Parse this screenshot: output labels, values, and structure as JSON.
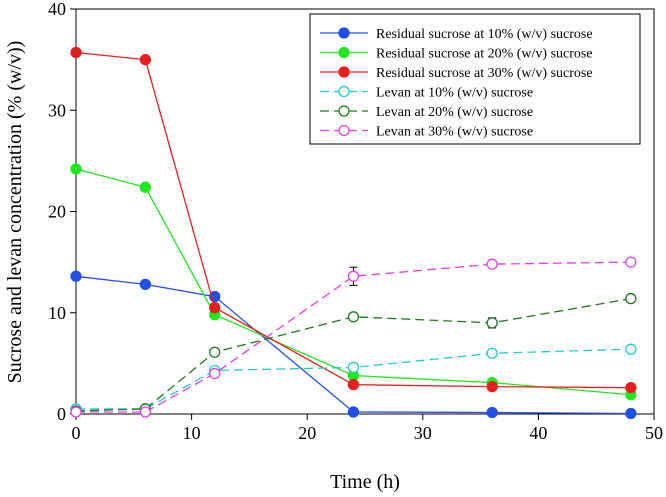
{
  "chart_data": {
    "type": "line",
    "title": "",
    "xlabel": "Time (h)",
    "ylabel": "Sucrose and levan concentration (% (w/v))",
    "xlim": [
      0,
      50
    ],
    "ylim": [
      0,
      40
    ],
    "xticks": [
      0,
      10,
      20,
      30,
      40,
      50
    ],
    "yticks": [
      0,
      10,
      20,
      30,
      40
    ],
    "grid": false,
    "legend_position": "top-right",
    "x": [
      0,
      6,
      12,
      24,
      36,
      48
    ],
    "series": [
      {
        "name": "Residual sucrose at 10% (w/v) sucrose",
        "color": "#1f4fe8",
        "style": "solid",
        "marker": "filled-circle",
        "values": [
          13.6,
          12.8,
          11.6,
          0.2,
          0.15,
          0.05
        ],
        "errors": [
          0.2,
          0.2,
          0.3,
          0.1,
          0.1,
          0.05
        ]
      },
      {
        "name": "Residual sucrose at 20% (w/v) sucrose",
        "color": "#1ee81e",
        "style": "solid",
        "marker": "filled-circle",
        "values": [
          24.2,
          22.4,
          9.8,
          3.8,
          3.1,
          1.9
        ],
        "errors": [
          0.2,
          0.2,
          0.3,
          0.2,
          0.2,
          0.2
        ]
      },
      {
        "name": "Residual sucrose at 30% (w/v) sucrose",
        "color": "#e81e1e",
        "style": "solid",
        "marker": "filled-circle",
        "values": [
          35.7,
          35.0,
          10.5,
          2.9,
          2.7,
          2.6
        ],
        "errors": [
          0.2,
          0.2,
          0.4,
          0.2,
          0.2,
          0.2
        ]
      },
      {
        "name": "Levan at 10% (w/v) sucrose",
        "color": "#1ecbd6",
        "style": "dashed",
        "marker": "open-circle",
        "values": [
          0.5,
          0.5,
          4.3,
          4.6,
          6.0,
          6.4
        ],
        "errors": [
          0.1,
          0.1,
          0.2,
          0.4,
          0.2,
          0.2
        ]
      },
      {
        "name": "Levan at 20% (w/v) sucrose",
        "color": "#1a7a1a",
        "style": "dashed",
        "marker": "open-circle",
        "values": [
          0.3,
          0.5,
          6.1,
          9.6,
          9.0,
          11.4
        ],
        "errors": [
          0.1,
          0.1,
          0.2,
          0.3,
          0.5,
          0.2
        ]
      },
      {
        "name": "Levan at 30% (w/v) sucrose",
        "color": "#e83ee8",
        "style": "dashed",
        "marker": "open-circle",
        "values": [
          0.2,
          0.2,
          4.0,
          13.6,
          14.8,
          15.0
        ],
        "errors": [
          0.1,
          0.1,
          0.3,
          0.9,
          0.3,
          0.2
        ]
      }
    ]
  }
}
